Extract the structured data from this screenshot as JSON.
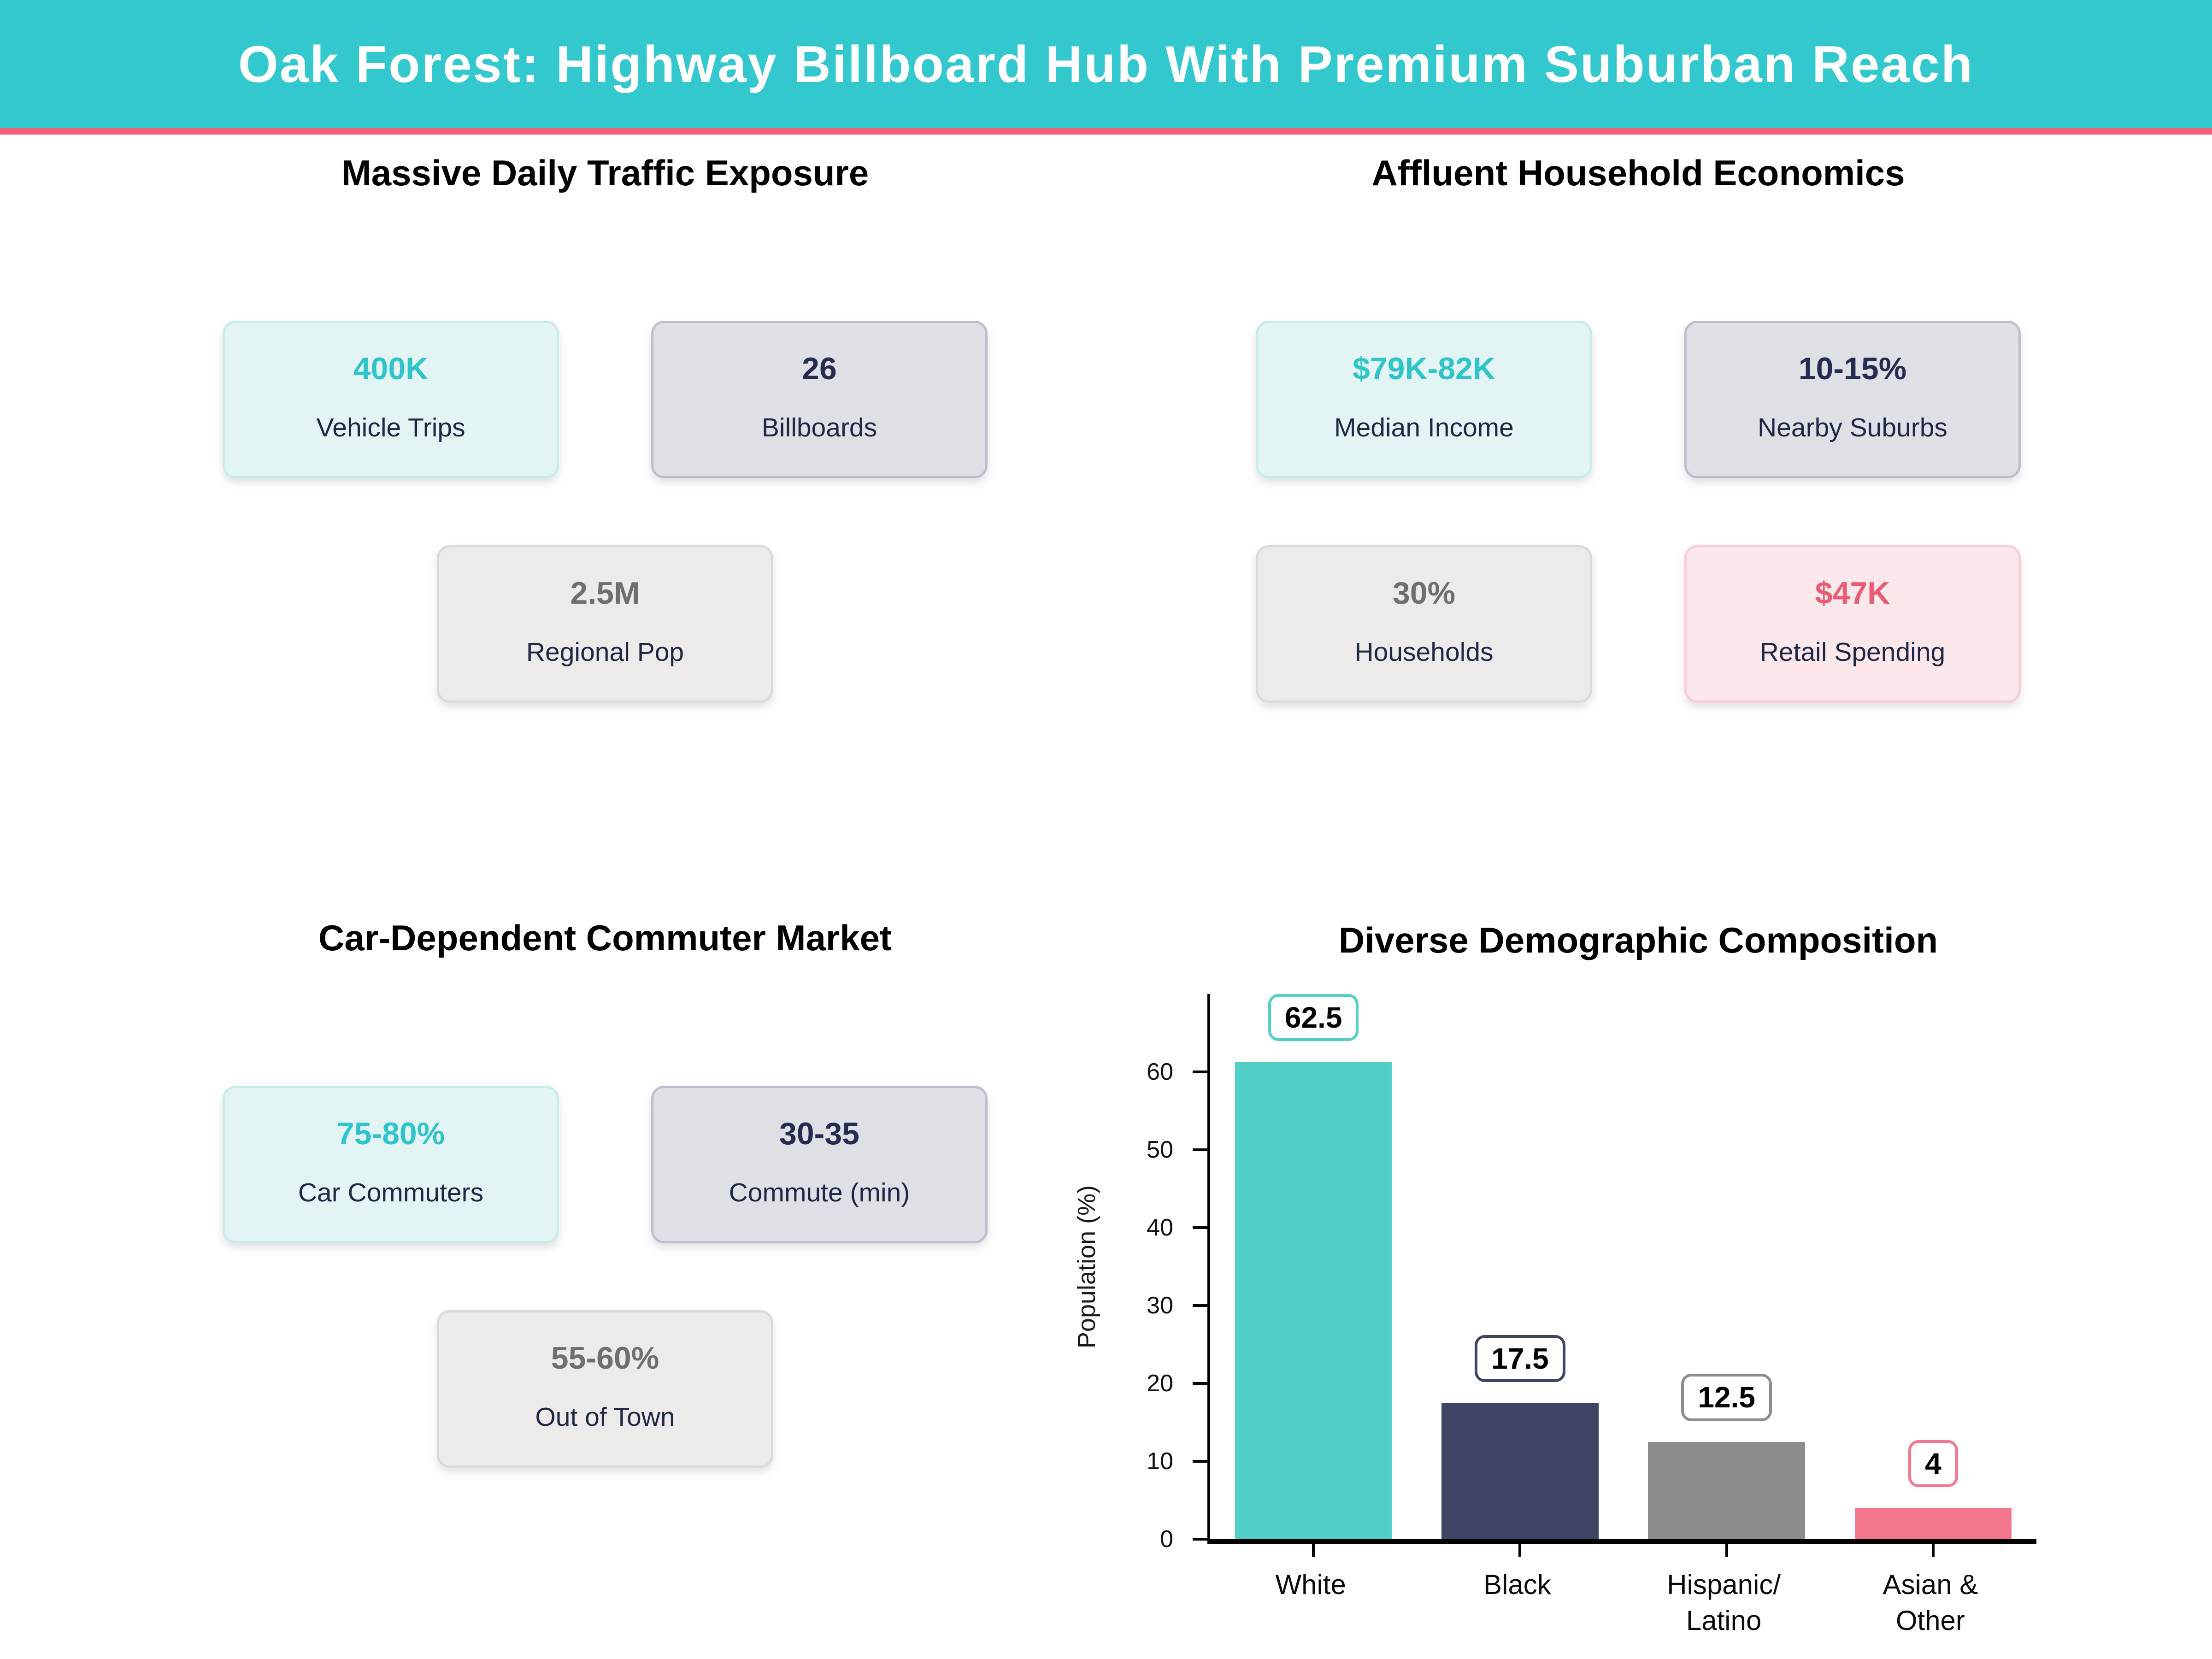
{
  "header": {
    "title": "Oak Forest: Highway Billboard Hub With Premium Suburban Reach"
  },
  "palette": {
    "header_bg": "#33C8CD",
    "header_accent_line": "#F0617C",
    "value_teal": "#2FC4C9",
    "value_navy": "#242C51",
    "value_gray": "#6F6F6F",
    "value_pink": "#E85C74",
    "card_teal_bg": "#E2F5F4",
    "card_slate_bg": "#DFE0E6",
    "card_gray_bg": "#ECEBE9",
    "card_pink_bg": "#FCE7EB"
  },
  "sections": {
    "traffic": {
      "title": "Massive Daily Traffic Exposure",
      "cards": [
        {
          "value": "400K",
          "label": "Vehicle Trips"
        },
        {
          "value": "26",
          "label": "Billboards"
        },
        {
          "value": "2.5M",
          "label": "Regional Pop"
        }
      ]
    },
    "economics": {
      "title": "Affluent Household Economics",
      "cards": [
        {
          "value": "$79K-82K",
          "label": "Median Income"
        },
        {
          "value": "10-15%",
          "label": "Nearby Suburbs"
        },
        {
          "value": "30%",
          "label": "Households"
        },
        {
          "value": "$47K",
          "label": "Retail Spending"
        }
      ]
    },
    "commuter": {
      "title": "Car-Dependent Commuter Market",
      "cards": [
        {
          "value": "75-80%",
          "label": "Car Commuters"
        },
        {
          "value": "30-35",
          "label": "Commute (min)"
        },
        {
          "value": "55-60%",
          "label": "Out of Town"
        }
      ]
    },
    "demographics": {
      "title": "Diverse Demographic Composition"
    }
  },
  "chart_data": {
    "type": "bar",
    "title": "Diverse Demographic Composition",
    "xlabel": "",
    "ylabel": "Population (%)",
    "categories": [
      "White",
      "Black",
      "Hispanic/Latino",
      "Asian & Other"
    ],
    "xtick_lines": [
      [
        "White"
      ],
      [
        "Black"
      ],
      [
        "Hispanic/",
        "Latino"
      ],
      [
        "Asian &",
        "Other"
      ]
    ],
    "values": [
      62.5,
      17.5,
      12.5,
      4
    ],
    "bar_labels": [
      "62.5",
      "17.5",
      "12.5",
      "4"
    ],
    "bar_colors": [
      "#52D0C7",
      "#3E4564",
      "#8D8D8D",
      "#F4768E"
    ],
    "yticks": [
      0,
      10,
      20,
      30,
      40,
      50,
      60
    ],
    "ylim": [
      0,
      70
    ],
    "grid": false,
    "legend": null
  }
}
